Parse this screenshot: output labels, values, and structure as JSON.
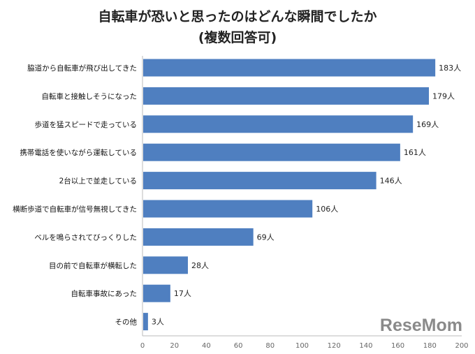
{
  "chart_data": {
    "type": "bar",
    "orientation": "horizontal",
    "title": "自転車が恐いと思ったのはどんな瞬間でしたか",
    "subtitle": "(複数回答可)",
    "categories": [
      "脇道から自転車が飛び出してきた",
      "自転車と接触しそうになった",
      "歩道を猛スピードで走っている",
      "携帯電話を使いながら運転している",
      "2台以上で並走している",
      "横断歩道で自転車が信号無視してきた",
      "ベルを鳴らされてびっくりした",
      "目の前で自転車が横転した",
      "自転車事故にあった",
      "その他"
    ],
    "values": [
      183,
      179,
      169,
      161,
      146,
      106,
      69,
      28,
      17,
      3
    ],
    "data_labels": [
      "183人",
      "179人",
      "169人",
      "161人",
      "146人",
      "106人",
      "69人",
      "28人",
      "17人",
      "3人"
    ],
    "xlim": [
      0,
      200
    ],
    "xticks": [
      0,
      20,
      40,
      60,
      80,
      100,
      120,
      140,
      160,
      180,
      200
    ],
    "grid": false,
    "bar_color": "#4f7fc0"
  },
  "watermark": "ReseMom"
}
